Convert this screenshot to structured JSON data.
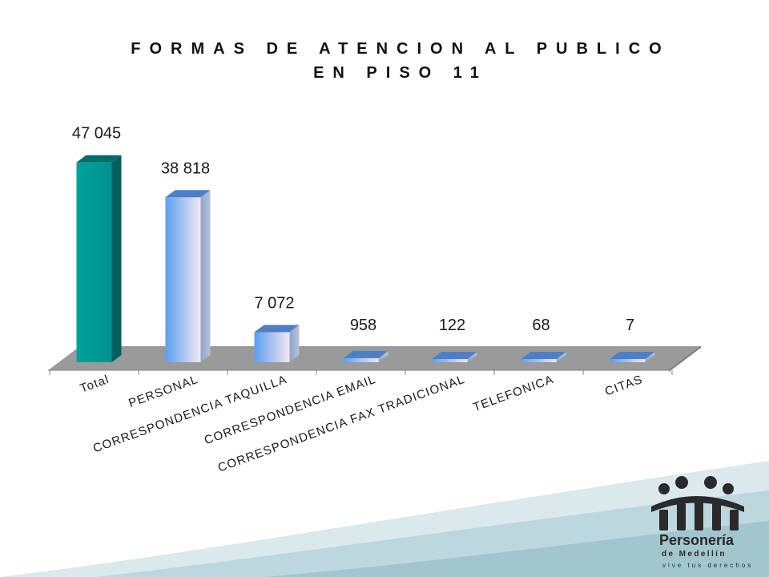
{
  "slide": {
    "title_line1": "FORMAS DE ATENCION AL PUBLICO",
    "title_line2": "EN PISO 11"
  },
  "chart_data": {
    "type": "bar",
    "title": "FORMAS DE ATENCION AL PUBLICO EN PISO 11",
    "categories": [
      "Total",
      "PERSONAL",
      "CORRESPONDENCIA TAQUILLA",
      "CORRESPONDENCIA EMAIL",
      "CORRESPONDENCIA FAX TRADICIONAL",
      "TELEFONICA",
      "CITAS"
    ],
    "values": [
      47045,
      38818,
      7072,
      958,
      122,
      68,
      7
    ],
    "data_labels": [
      "47 045",
      "38 818",
      "7 072",
      "958",
      "122",
      "68",
      "7"
    ],
    "ylim": [
      0,
      50000
    ],
    "grid": false,
    "legend": "none",
    "style": "3d-column",
    "colors": {
      "total_bar": "#009a94",
      "bar_gradient_left": "#5aa0f0",
      "bar_gradient_right": "#f5e6f2",
      "floor": "#999999"
    }
  },
  "logo": {
    "name": "Personería",
    "city": "de Medellín",
    "tagline": "vive tus derechos",
    "color": "#2a2a2a"
  }
}
